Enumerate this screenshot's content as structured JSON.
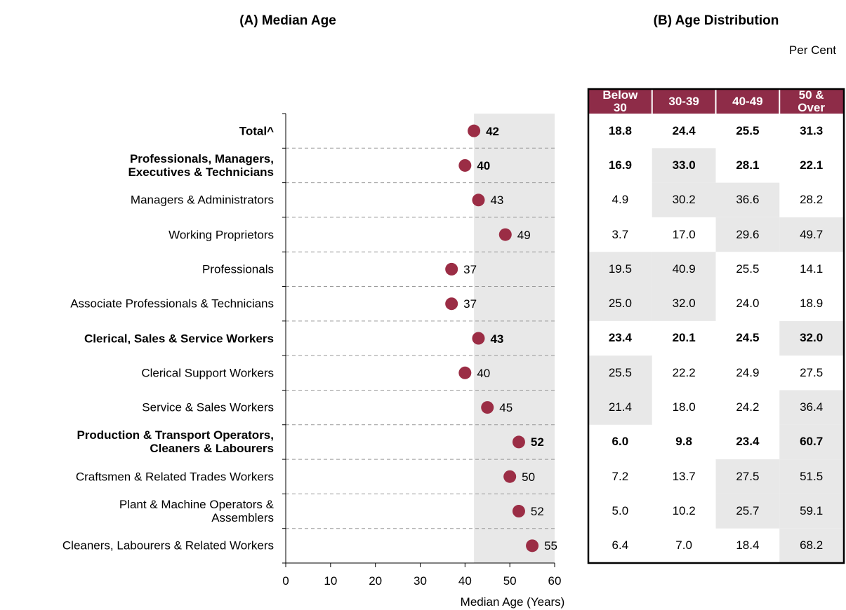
{
  "chart_data": {
    "type": "dot",
    "title": "(A) Median Age",
    "categories": [
      "Total^",
      "Professionals, Managers,\nExecutives & Technicians",
      "Managers & Administrators",
      "Working Proprietors",
      "Professionals",
      "Associate Professionals & Technicians",
      "Clerical, Sales & Service Workers",
      "Clerical Support Workers",
      "Service & Sales Workers",
      "Production & Transport Operators,\nCleaners & Labourers",
      "Craftsmen & Related Trades Workers",
      "Plant & Machine Operators &\nAssemblers",
      "Cleaners, Labourers & Related Workers"
    ],
    "values": [
      42,
      40,
      43,
      49,
      37,
      37,
      43,
      40,
      45,
      52,
      50,
      52,
      55
    ],
    "color": "#9b2d45",
    "bold_rows": [
      0,
      1,
      6,
      9
    ],
    "xlabel": "Median Age (Years)",
    "xlim": [
      0,
      60
    ],
    "xticks": [
      0,
      10,
      20,
      30,
      40,
      50,
      60
    ]
  },
  "table": {
    "title": "(B) Age Distribution",
    "unit": "Per Cent",
    "header_color": "#8e2c48",
    "headers": [
      "Below\n30",
      "30-39",
      "40-49",
      "50 &\nOver"
    ],
    "rows": [
      [
        "18.8",
        "24.4",
        "25.5",
        "31.3"
      ],
      [
        "16.9",
        "33.0",
        "28.1",
        "22.1"
      ],
      [
        "4.9",
        "30.2",
        "36.6",
        "28.2"
      ],
      [
        "3.7",
        "17.0",
        "29.6",
        "49.7"
      ],
      [
        "19.5",
        "40.9",
        "25.5",
        "14.1"
      ],
      [
        "25.0",
        "32.0",
        "24.0",
        "18.9"
      ],
      [
        "23.4",
        "20.1",
        "24.5",
        "32.0"
      ],
      [
        "25.5",
        "22.2",
        "24.9",
        "27.5"
      ],
      [
        "21.4",
        "18.0",
        "24.2",
        "36.4"
      ],
      [
        "6.0",
        "9.8",
        "23.4",
        "60.7"
      ],
      [
        "7.2",
        "13.7",
        "27.5",
        "51.5"
      ],
      [
        "5.0",
        "10.2",
        "25.7",
        "59.1"
      ],
      [
        "6.4",
        "7.0",
        "18.4",
        "68.2"
      ]
    ],
    "shaded": [
      [
        false,
        false,
        false,
        false
      ],
      [
        false,
        true,
        false,
        false
      ],
      [
        false,
        true,
        true,
        false
      ],
      [
        false,
        false,
        true,
        true
      ],
      [
        true,
        true,
        false,
        false
      ],
      [
        true,
        true,
        false,
        false
      ],
      [
        false,
        false,
        false,
        true
      ],
      [
        true,
        false,
        false,
        false
      ],
      [
        true,
        false,
        false,
        true
      ],
      [
        false,
        false,
        false,
        true
      ],
      [
        false,
        false,
        true,
        true
      ],
      [
        false,
        false,
        true,
        true
      ],
      [
        false,
        false,
        false,
        true
      ]
    ]
  }
}
